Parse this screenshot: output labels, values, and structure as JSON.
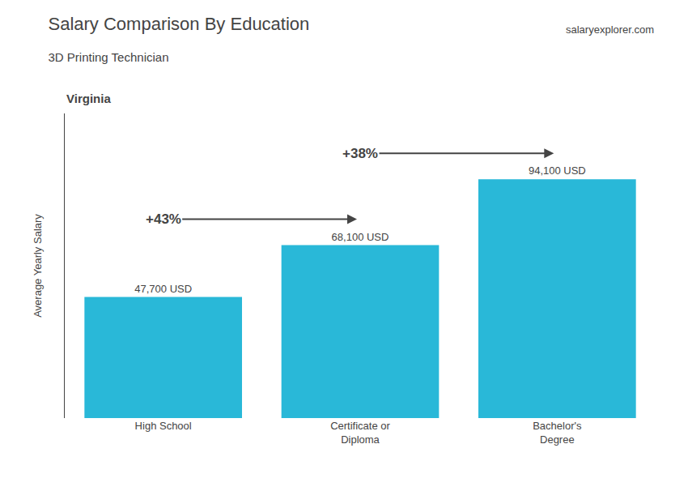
{
  "chart_data": {
    "type": "bar",
    "title": "Salary Comparison By Education",
    "subtitle": "3D Printing Technician",
    "annotations": [
      "Virginia",
      "salaryexplorer.com",
      "+43%",
      "+38%"
    ],
    "ylabel": "Average Yearly Salary",
    "categories": [
      "High School",
      "Certificate or\nDiploma",
      "Bachelor's\nDegree"
    ],
    "values": [
      47700,
      68100,
      94100
    ],
    "value_labels": [
      "47,700 USD",
      "68,100 USD",
      "94,100 USD"
    ],
    "data_labels": true,
    "color": "#29b8d8",
    "ylim": [
      0,
      120000
    ],
    "yticks": [],
    "tick_labels": "x",
    "grid": false
  }
}
